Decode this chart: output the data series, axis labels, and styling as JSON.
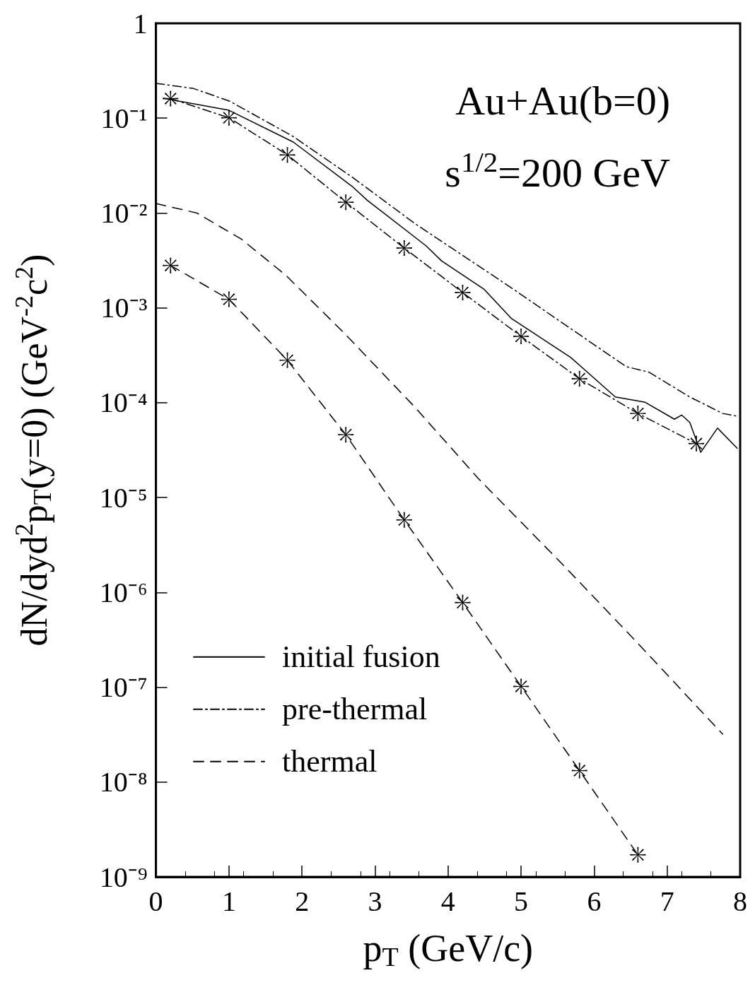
{
  "chart_data": {
    "type": "line",
    "xlabel": "p$_{T}$ (GeV/c)",
    "ylabel": "dN/dyd$^{2}$p$_{T}$(y=0) (GeV$^{-2}$c$^{2}$)",
    "annotations": [
      "Au+Au(b=0)",
      "s$^{1/2}$=200 GeV"
    ],
    "log": "y",
    "grid": false,
    "legend": "bottom left",
    "xlim": [
      0,
      8
    ],
    "xticks": [
      0,
      1,
      2,
      3,
      4,
      5,
      6,
      7,
      8
    ],
    "ylim": [
      1e-09,
      1
    ],
    "yticks": [
      {
        "value": 1e-09,
        "label": "10⁻⁹"
      },
      {
        "value": 1e-08,
        "label": "10⁻⁸"
      },
      {
        "value": 1e-07,
        "label": "10⁻⁷"
      },
      {
        "value": 1e-06,
        "label": "10⁻⁶"
      },
      {
        "value": 1e-05,
        "label": "10⁻⁵"
      },
      {
        "value": 0.0001,
        "label": "10⁻⁴"
      },
      {
        "value": 0.001,
        "label": "10⁻³"
      },
      {
        "value": 0.01,
        "label": "10⁻²"
      },
      {
        "value": 0.1,
        "label": "10⁻¹"
      },
      1
    ],
    "series": [
      {
        "name": "initial fusion",
        "line_style": "solid",
        "marker": "none",
        "color": "#000000",
        "x": [
          0.1,
          1.0,
          1.88,
          2.69,
          2.89,
          3.7,
          3.91,
          4.49,
          4.87,
          5.68,
          6.29,
          6.7,
          7.1,
          7.2,
          7.31,
          7.46,
          7.69,
          7.96
        ],
        "values": [
          0.162,
          0.121,
          0.056,
          0.019,
          0.0137,
          0.0045,
          0.00313,
          0.00158,
          0.00077,
          0.0003,
          0.000115,
          0.000101,
          6.7e-05,
          7.4e-05,
          6.2e-05,
          3e-05,
          5.4e-05,
          3.3e-05
        ]
      },
      {
        "name": "pre-thermal",
        "line_style": "dashdot",
        "marker": "none",
        "color": "#000000",
        "x": [
          0.0,
          0.51,
          1.01,
          1.88,
          2.69,
          3.55,
          4.82,
          5.94,
          6.44,
          6.75,
          7.31,
          7.76,
          7.96
        ],
        "values": [
          0.233,
          0.206,
          0.151,
          0.064,
          0.0238,
          0.0077,
          0.00172,
          0.00044,
          0.00024,
          0.00021,
          0.000115,
          7.7e-05,
          7.2e-05
        ]
      },
      {
        "name": "thermal",
        "line_style": "dashed",
        "marker": "none",
        "color": "#000000",
        "x": [
          0.0,
          0.56,
          1.17,
          1.78,
          2.59,
          3.55,
          4.41,
          5.58,
          6.6,
          7.76
        ],
        "values": [
          0.0126,
          0.01,
          0.0053,
          0.0022,
          0.00053,
          8.9e-05,
          1.6e-05,
          1.93e-06,
          2.9e-07,
          3.2e-08
        ]
      },
      {
        "line_style": "dashdot",
        "marker": "cross",
        "color": "#000000",
        "x": [
          0.2,
          1,
          1.8,
          2.6,
          3.4,
          4.2,
          5,
          5.8,
          6.6,
          7.4
        ],
        "values": [
          0.161,
          0.101,
          0.041,
          0.013,
          0.00427,
          0.00145,
          0.0005,
          0.000179,
          7.7e-05,
          3.7e-05
        ]
      },
      {
        "line_style": "dashed",
        "marker": "cross",
        "color": "#000000",
        "x": [
          0.2,
          1,
          1.8,
          2.6,
          3.4,
          4.2,
          5,
          5.8,
          6.6
        ],
        "values": [
          0.0028,
          0.00123,
          0.00028,
          4.6e-05,
          5.8e-06,
          7.8e-07,
          1.02e-07,
          1.32e-08,
          1.71e-09
        ]
      }
    ]
  }
}
